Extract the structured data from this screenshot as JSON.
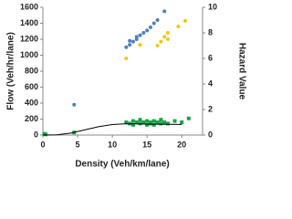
{
  "chart_data": {
    "type": "scatter",
    "xlabel": "Density (Veh/km/lane)",
    "ylabel": "Flow (Veh/hr/lane)",
    "y2label": "Hazard Value",
    "xlim": [
      0,
      23
    ],
    "xticks": [
      0,
      5,
      10,
      15,
      20
    ],
    "ylim": [
      0,
      1600
    ],
    "yticks": [
      0,
      200,
      400,
      600,
      800,
      1000,
      1200,
      1400,
      1600
    ],
    "y2lim": [
      0,
      10
    ],
    "y2ticks": [
      0,
      2,
      4,
      6,
      8,
      10
    ],
    "series": [
      {
        "color": "#4f81bd",
        "marker": "circle",
        "x": [
          4.5,
          12,
          12.5,
          12.5,
          13,
          13.5,
          13.5,
          14,
          14.5,
          15,
          15.5,
          16,
          16.5,
          17.5
        ],
        "values": [
          380,
          1100,
          1130,
          1180,
          1170,
          1200,
          1230,
          1250,
          1280,
          1310,
          1350,
          1400,
          1440,
          1550
        ]
      },
      {
        "color": "#f5c518",
        "marker": "circle",
        "x": [
          12,
          14,
          16.5,
          17,
          17.5,
          18,
          18,
          19.5,
          20.5
        ],
        "values": [
          960,
          1130,
          1120,
          1170,
          1230,
          1280,
          1200,
          1360,
          1430
        ]
      },
      {
        "color": "#1aa34a",
        "marker": "square",
        "axis": "y2",
        "x": [
          0.2,
          0.4,
          4.5,
          12,
          12.5,
          13,
          13,
          13.5,
          14,
          14,
          14.5,
          15,
          15,
          15.5,
          15.5,
          16,
          16,
          16.5,
          17,
          17,
          17.5,
          18,
          19,
          20,
          21
        ],
        "values": [
          0.1,
          0.05,
          0.2,
          1.0,
          0.9,
          1.1,
          0.8,
          1.0,
          0.9,
          1.2,
          1.0,
          0.8,
          1.1,
          0.9,
          1.0,
          1.1,
          0.8,
          1.0,
          0.9,
          1.2,
          1.0,
          0.9,
          1.1,
          1.0,
          1.3
        ]
      },
      {
        "color": "#000000",
        "marker": "line",
        "axis": "y2",
        "x": [
          0,
          2,
          4,
          6,
          8,
          10,
          12,
          14,
          16,
          18,
          20
        ],
        "values": [
          0,
          0.02,
          0.15,
          0.4,
          0.65,
          0.82,
          0.88,
          0.87,
          0.85,
          0.84,
          0.83
        ]
      }
    ]
  }
}
